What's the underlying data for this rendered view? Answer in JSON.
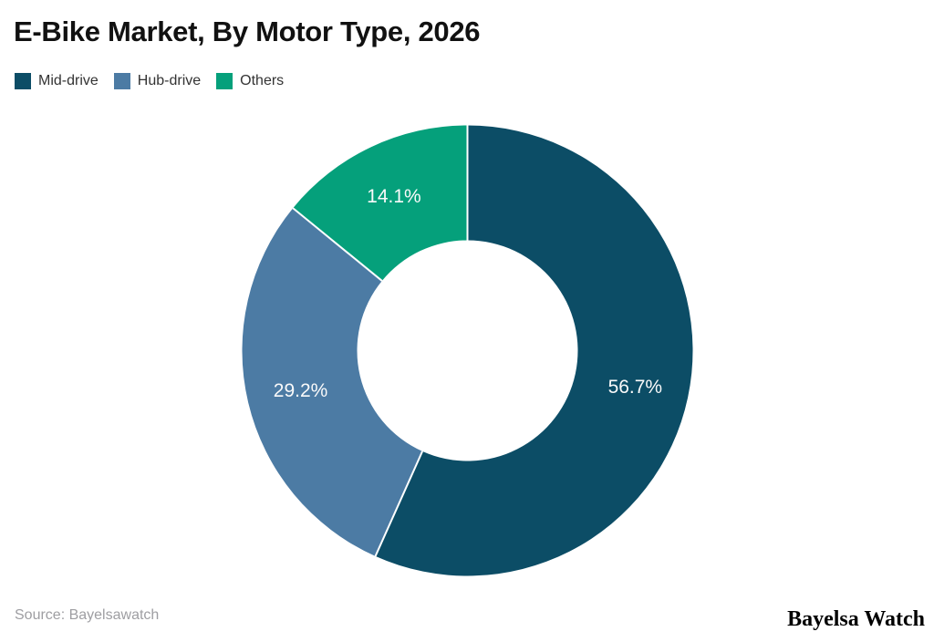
{
  "title": "E-Bike Market, By Motor Type, 2026",
  "legend": [
    {
      "label": "Mid-drive",
      "color": "#0c4d66"
    },
    {
      "label": "Hub-drive",
      "color": "#4c7ba4"
    },
    {
      "label": "Others",
      "color": "#05a07b"
    }
  ],
  "chart_data": {
    "type": "pie",
    "subtype": "donut",
    "title": "E-Bike Market, By Motor Type, 2026",
    "categories": [
      "Mid-drive",
      "Hub-drive",
      "Others"
    ],
    "values": [
      56.7,
      29.2,
      14.1
    ],
    "unit": "%",
    "slice_labels": [
      "56.7%",
      "29.2%",
      "14.1%"
    ],
    "colors": [
      "#0c4d66",
      "#4c7ba4",
      "#05a07b"
    ],
    "start_angle_deg": 0,
    "direction": "clockwise",
    "inner_radius_ratio": 0.49,
    "divider_color": "#ffffff",
    "label_color": "#fafafa",
    "legend_position": "top-left"
  },
  "footer": {
    "source": "Source: Bayelsawatch",
    "brand": "Bayelsa Watch"
  }
}
